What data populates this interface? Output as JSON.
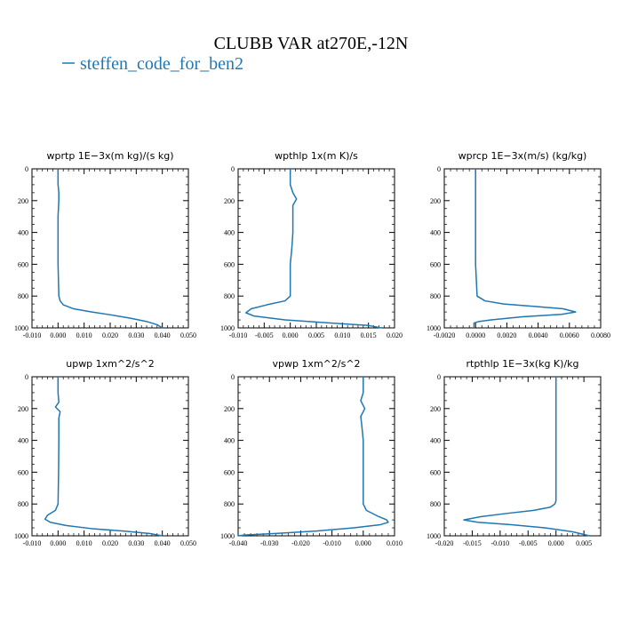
{
  "figure_title": "CLUBB VAR at270E,-12N",
  "legend": {
    "label": "steffen_code_for_ben2",
    "color": "#1f77b4"
  },
  "chart_data": [
    {
      "type": "line",
      "title": "wprtp   1E−3x(m kg)/(s kg)",
      "xlim": [
        -0.01,
        0.05
      ],
      "xticks": [
        "-0.010",
        "0.000",
        "0.010",
        "0.020",
        "0.030",
        "0.040",
        "0.050"
      ],
      "ylim": [
        1000,
        0
      ],
      "yticks": [
        "0",
        "200",
        "400",
        "600",
        "800",
        "1000"
      ],
      "series": [
        {
          "name": "steffen_code_for_ben2",
          "x": [
            0.0,
            0.0,
            0.0003,
            0.0003,
            0.0,
            0.0,
            0.0003,
            0.0008,
            0.002,
            0.006,
            0.013,
            0.021,
            0.028,
            0.034,
            0.038,
            0.04
          ],
          "y": [
            0,
            100,
            150,
            200,
            300,
            600,
            800,
            830,
            855,
            880,
            900,
            920,
            940,
            960,
            980,
            1000
          ]
        }
      ]
    },
    {
      "type": "line",
      "title": "wpthlp   1x(m K)/s",
      "xlim": [
        -0.01,
        0.02
      ],
      "xticks": [
        "-0.010",
        "-0.005",
        "0.000",
        "0.005",
        "0.010",
        "0.015",
        "0.020"
      ],
      "ylim": [
        1000,
        0
      ],
      "yticks": [
        "0",
        "200",
        "400",
        "600",
        "800",
        "1000"
      ],
      "series": [
        {
          "name": "steffen_code_for_ben2",
          "x": [
            0.0,
            0.0,
            0.0005,
            0.0012,
            0.0005,
            0.0005,
            0.0005,
            0.0003,
            0.0,
            0.0,
            -0.001,
            -0.0045,
            -0.0075,
            -0.0085,
            -0.007,
            -0.001,
            0.008,
            0.015,
            0.0175
          ],
          "y": [
            0,
            100,
            150,
            190,
            230,
            300,
            400,
            500,
            600,
            800,
            830,
            855,
            880,
            905,
            925,
            950,
            970,
            985,
            1000
          ]
        }
      ]
    },
    {
      "type": "line",
      "title": "wprcp   1E−3x(m/s) (kg/kg)",
      "xlim": [
        -0.002,
        0.008
      ],
      "xticks": [
        "-0.0020",
        "0.0000",
        "0.0020",
        "0.0040",
        "0.0060",
        "0.0080"
      ],
      "ylim": [
        1000,
        0
      ],
      "yticks": [
        "0",
        "200",
        "400",
        "600",
        "800",
        "1000"
      ],
      "series": [
        {
          "name": "steffen_code_for_ben2",
          "x": [
            0.0,
            0.0,
            0.0001,
            0.0006,
            0.0018,
            0.0038,
            0.0056,
            0.0064,
            0.0055,
            0.003,
            0.001,
            0.0002,
            -0.0001,
            -0.0001
          ],
          "y": [
            0,
            600,
            800,
            830,
            850,
            865,
            880,
            900,
            915,
            930,
            950,
            960,
            970,
            1000
          ]
        }
      ]
    },
    {
      "type": "line",
      "title": "upwp   1xm^2/s^2",
      "xlim": [
        -0.01,
        0.05
      ],
      "xticks": [
        "-0.010",
        "0.000",
        "0.010",
        "0.020",
        "0.030",
        "0.040",
        "0.050"
      ],
      "ylim": [
        1000,
        0
      ],
      "yticks": [
        "0",
        "200",
        "400",
        "600",
        "800",
        "1000"
      ],
      "series": [
        {
          "name": "steffen_code_for_ben2",
          "x": [
            0.0,
            0.0,
            0.0003,
            -0.001,
            0.0008,
            0.0003,
            0.0003,
            0.0002,
            0.0,
            -0.001,
            -0.004,
            -0.005,
            -0.003,
            0.003,
            0.013,
            0.025,
            0.035,
            0.04
          ],
          "y": [
            0,
            100,
            160,
            190,
            220,
            260,
            400,
            600,
            800,
            840,
            870,
            895,
            915,
            935,
            955,
            970,
            985,
            1000
          ]
        }
      ]
    },
    {
      "type": "line",
      "title": "vpwp   1xm^2/s^2",
      "xlim": [
        -0.04,
        0.01
      ],
      "xticks": [
        "-0.040",
        "-0.030",
        "-0.020",
        "-0.010",
        "0.000",
        "0.010"
      ],
      "ylim": [
        1000,
        0
      ],
      "yticks": [
        "0",
        "200",
        "400",
        "600",
        "800",
        "1000"
      ],
      "series": [
        {
          "name": "steffen_code_for_ben2",
          "x": [
            0.0,
            0.0,
            -0.0008,
            0.0005,
            -0.0008,
            -0.0005,
            0.0,
            0.0,
            0.001,
            0.0045,
            0.0075,
            0.008,
            0.0055,
            -0.003,
            -0.015,
            -0.028,
            -0.038,
            -0.04
          ],
          "y": [
            0,
            100,
            150,
            200,
            250,
            300,
            400,
            800,
            840,
            875,
            900,
            915,
            930,
            950,
            970,
            985,
            995,
            1000
          ]
        }
      ]
    },
    {
      "type": "line",
      "title": "rtpthlp   1E−3x(kg K)/kg",
      "xlim": [
        -0.02,
        0.008
      ],
      "xticks": [
        "-0.020",
        "-0.015",
        "-0.010",
        "-0.005",
        "0.000",
        "0.005"
      ],
      "ylim": [
        1000,
        0
      ],
      "yticks": [
        "0",
        "200",
        "400",
        "600",
        "800",
        "1000"
      ],
      "series": [
        {
          "name": "steffen_code_for_ben2",
          "x": [
            0.0,
            0.0,
            -0.0002,
            -0.001,
            -0.004,
            -0.009,
            -0.0135,
            -0.0165,
            -0.014,
            -0.008,
            -0.002,
            0.003,
            0.006
          ],
          "y": [
            0,
            780,
            800,
            820,
            840,
            860,
            880,
            900,
            915,
            930,
            950,
            975,
            1000
          ]
        }
      ]
    }
  ]
}
